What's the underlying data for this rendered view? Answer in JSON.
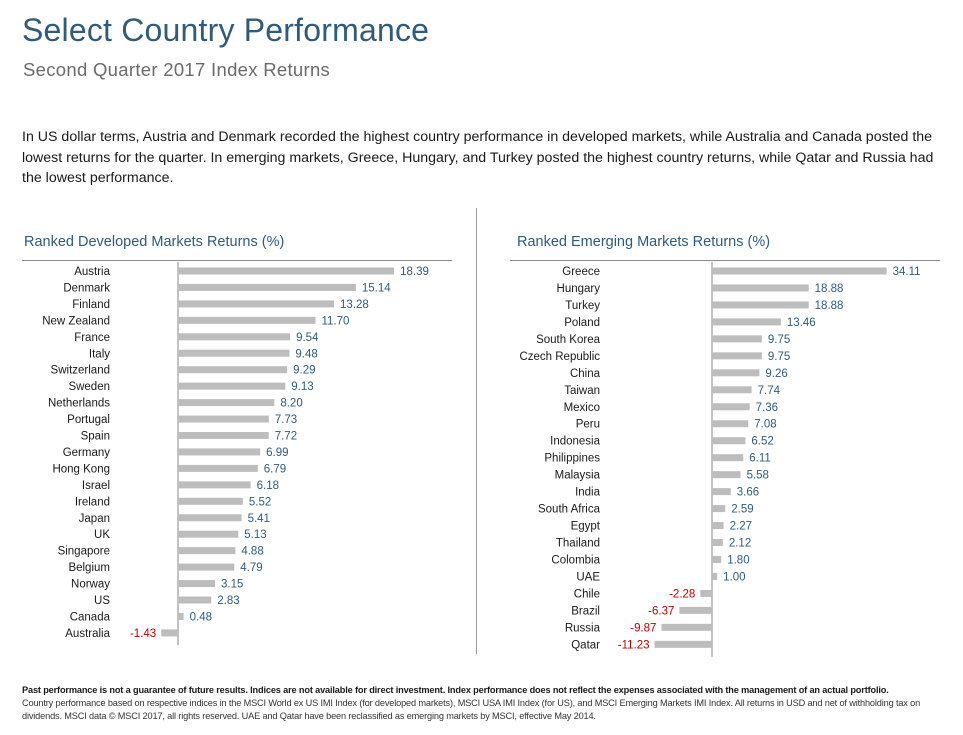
{
  "title": "Select Country Performance",
  "subtitle": "Second Quarter 2017 Index Returns",
  "intro": "In US dollar terms, Austria and Denmark recorded the highest country performance in developed markets, while Australia and Canada posted the lowest returns for the quarter. In emerging markets, Greece, Hungary, and Turkey posted the highest country returns, while Qatar and Russia had the lowest performance.",
  "colors": {
    "bar": "#bdbdbd",
    "positive_label": "#2f5b7c",
    "negative_label": "#c00000",
    "title": "#2f5b7c"
  },
  "chart_data": [
    {
      "type": "bar",
      "orientation": "horizontal",
      "title": "Ranked Developed Markets Returns (%)",
      "categories": [
        "Austria",
        "Denmark",
        "Finland",
        "New Zealand",
        "France",
        "Italy",
        "Switzerland",
        "Sweden",
        "Netherlands",
        "Portugal",
        "Spain",
        "Germany",
        "Hong Kong",
        "Israel",
        "Ireland",
        "Japan",
        "UK",
        "Singapore",
        "Belgium",
        "Norway",
        "US",
        "Canada",
        "Australia"
      ],
      "values": [
        18.39,
        15.14,
        13.28,
        11.7,
        9.54,
        9.48,
        9.29,
        9.13,
        8.2,
        7.73,
        7.72,
        6.99,
        6.79,
        6.18,
        5.52,
        5.41,
        5.13,
        4.88,
        4.79,
        3.15,
        2.83,
        0.48,
        -1.43
      ],
      "labels": [
        "18.39",
        "15.14",
        "13.28",
        "11.70",
        "9.54",
        "9.48",
        "9.29",
        "9.13",
        "8.20",
        "7.73",
        "7.72",
        "6.99",
        "6.79",
        "6.18",
        "5.52",
        "5.41",
        "5.13",
        "4.88",
        "4.79",
        "3.15",
        "2.83",
        "0.48",
        "-1.43"
      ]
    },
    {
      "type": "bar",
      "orientation": "horizontal",
      "title": "Ranked Emerging Markets Returns (%)",
      "categories": [
        "Greece",
        "Hungary",
        "Turkey",
        "Poland",
        "South Korea",
        "Czech Republic",
        "China",
        "Taiwan",
        "Mexico",
        "Peru",
        "Indonesia",
        "Philippines",
        "Malaysia",
        "India",
        "South Africa",
        "Egypt",
        "Thailand",
        "Colombia",
        "UAE",
        "Chile",
        "Brazil",
        "Russia",
        "Qatar"
      ],
      "values": [
        34.11,
        18.88,
        18.88,
        13.46,
        9.75,
        9.75,
        9.26,
        7.74,
        7.36,
        7.08,
        6.52,
        6.11,
        5.58,
        3.66,
        2.59,
        2.27,
        2.12,
        1.8,
        1.0,
        -2.28,
        -6.37,
        -9.87,
        -11.23
      ],
      "labels": [
        "34.11",
        "18.88",
        "18.88",
        "13.46",
        "9.75",
        "9.75",
        "9.26",
        "7.74",
        "7.36",
        "7.08",
        "6.52",
        "6.11",
        "5.58",
        "3.66",
        "2.59",
        "2.27",
        "2.12",
        "1.80",
        "1.00",
        "-2.28",
        "-6.37",
        "-9.87",
        "-11.23"
      ]
    }
  ],
  "footer": {
    "bold": "Past performance is not a guarantee of future results. Indices are not available for direct investment. Index performance does not reflect the expenses associated with the management of an actual portfolio.",
    "text": "Country performance based on respective indices in the MSCI World ex US IMI Index (for developed markets), MSCI USA IMI Index (for US), and MSCI Emerging Markets IMI Index. All returns in USD and net of withholding tax on dividends. MSCI data © MSCI 2017, all rights reserved. UAE and Qatar have been reclassified as emerging markets by MSCI, effective May 2014."
  }
}
